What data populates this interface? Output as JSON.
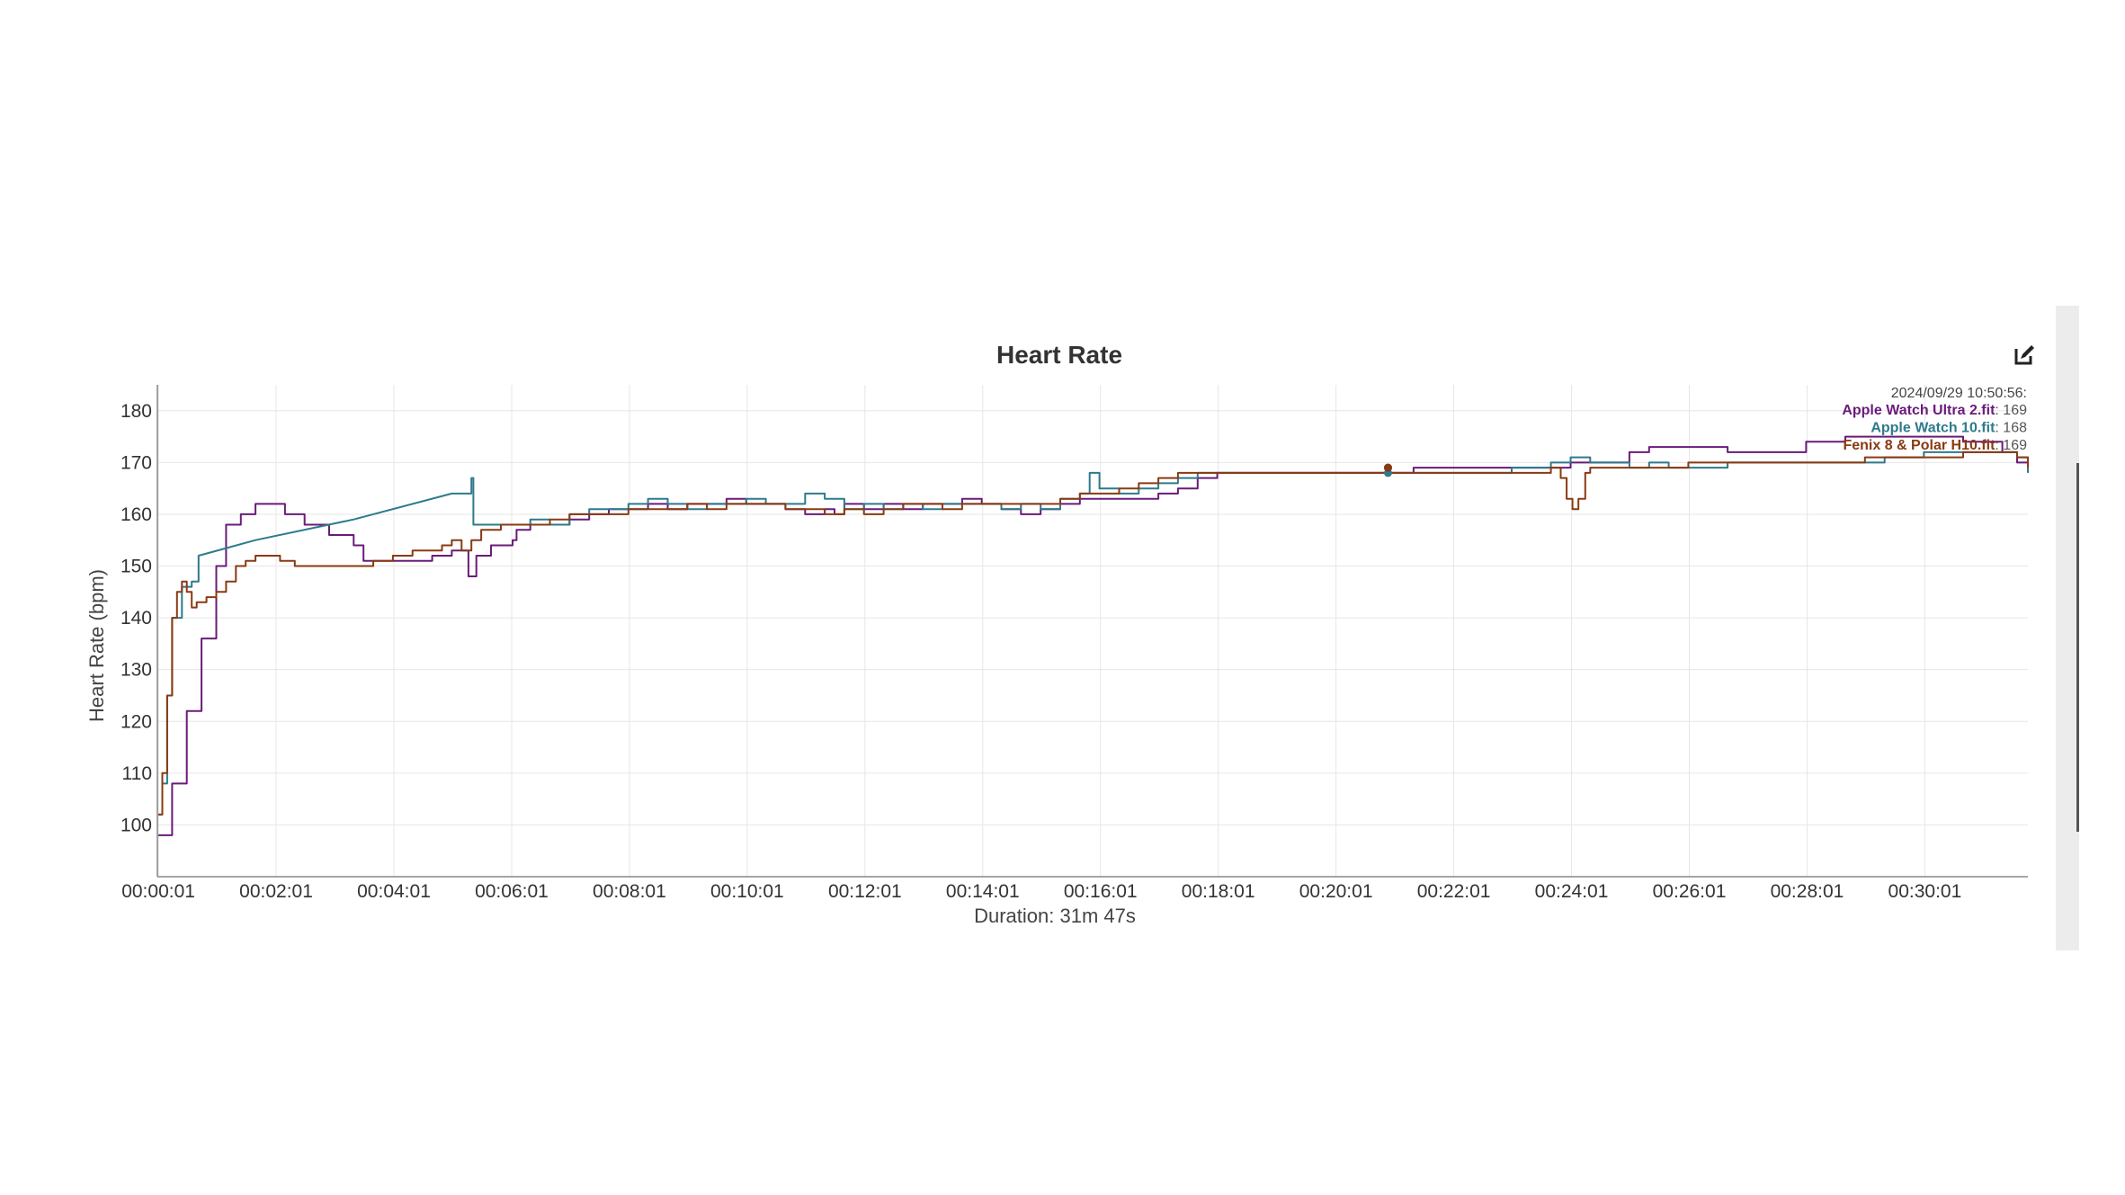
{
  "chart_data": {
    "type": "line",
    "title": "Heart Rate",
    "ylabel": "Heart Rate (bpm)",
    "xlabel": "Duration: 31m 47s",
    "x_unit": "seconds",
    "xlim": [
      0,
      1906
    ],
    "ylim": [
      90,
      185
    ],
    "x_ticks": [
      "00:00:01",
      "00:02:01",
      "00:04:01",
      "00:06:01",
      "00:08:01",
      "00:10:01",
      "00:12:01",
      "00:14:01",
      "00:16:01",
      "00:18:01",
      "00:20:01",
      "00:22:01",
      "00:24:01",
      "00:26:01",
      "00:28:01",
      "00:30:01"
    ],
    "y_ticks": [
      100,
      110,
      120,
      130,
      140,
      150,
      160,
      170,
      180
    ],
    "grid": true,
    "legend": "tooltip at top-right",
    "series": [
      {
        "name": "Apple Watch Ultra 2.fit",
        "color": "#6a1b7a",
        "points": [
          [
            1,
            98
          ],
          [
            8,
            98
          ],
          [
            15,
            108
          ],
          [
            30,
            122
          ],
          [
            45,
            136
          ],
          [
            60,
            150
          ],
          [
            70,
            158
          ],
          [
            85,
            160
          ],
          [
            100,
            162
          ],
          [
            125,
            162
          ],
          [
            130,
            160
          ],
          [
            150,
            158
          ],
          [
            175,
            156
          ],
          [
            200,
            154
          ],
          [
            210,
            151
          ],
          [
            225,
            151
          ],
          [
            240,
            151
          ],
          [
            260,
            151
          ],
          [
            280,
            152
          ],
          [
            300,
            153
          ],
          [
            310,
            153
          ],
          [
            317,
            148
          ],
          [
            325,
            152
          ],
          [
            340,
            154
          ],
          [
            362,
            155
          ],
          [
            366,
            157
          ],
          [
            380,
            158
          ],
          [
            400,
            158
          ],
          [
            420,
            159
          ],
          [
            440,
            160
          ],
          [
            460,
            161
          ],
          [
            480,
            161
          ],
          [
            500,
            162
          ],
          [
            520,
            161
          ],
          [
            540,
            162
          ],
          [
            560,
            162
          ],
          [
            580,
            163
          ],
          [
            600,
            162
          ],
          [
            620,
            162
          ],
          [
            640,
            161
          ],
          [
            660,
            160
          ],
          [
            680,
            161
          ],
          [
            690,
            160
          ],
          [
            700,
            162
          ],
          [
            720,
            161
          ],
          [
            740,
            162
          ],
          [
            760,
            161
          ],
          [
            780,
            162
          ],
          [
            800,
            162
          ],
          [
            820,
            163
          ],
          [
            840,
            162
          ],
          [
            860,
            161
          ],
          [
            880,
            160
          ],
          [
            900,
            161
          ],
          [
            920,
            162
          ],
          [
            940,
            163
          ],
          [
            960,
            163
          ],
          [
            980,
            163
          ],
          [
            1000,
            163
          ],
          [
            1020,
            164
          ],
          [
            1040,
            165
          ],
          [
            1060,
            167
          ],
          [
            1080,
            168
          ],
          [
            1100,
            168
          ],
          [
            1120,
            168
          ],
          [
            1140,
            168
          ],
          [
            1160,
            168
          ],
          [
            1180,
            168
          ],
          [
            1200,
            168
          ],
          [
            1220,
            168
          ],
          [
            1240,
            168
          ],
          [
            1260,
            168
          ],
          [
            1280,
            169
          ],
          [
            1300,
            169
          ],
          [
            1320,
            169
          ],
          [
            1340,
            169
          ],
          [
            1360,
            169
          ],
          [
            1380,
            169
          ],
          [
            1400,
            169
          ],
          [
            1420,
            169
          ],
          [
            1440,
            170
          ],
          [
            1460,
            170
          ],
          [
            1480,
            170
          ],
          [
            1500,
            172
          ],
          [
            1520,
            173
          ],
          [
            1540,
            173
          ],
          [
            1560,
            173
          ],
          [
            1580,
            173
          ],
          [
            1600,
            172
          ],
          [
            1620,
            172
          ],
          [
            1640,
            172
          ],
          [
            1660,
            172
          ],
          [
            1680,
            174
          ],
          [
            1700,
            174
          ],
          [
            1720,
            175
          ],
          [
            1740,
            175
          ],
          [
            1760,
            175
          ],
          [
            1780,
            175
          ],
          [
            1800,
            175
          ],
          [
            1820,
            175
          ],
          [
            1840,
            174
          ],
          [
            1860,
            174
          ],
          [
            1880,
            172
          ],
          [
            1895,
            170
          ],
          [
            1906,
            169
          ]
        ]
      },
      {
        "name": "Apple Watch 10.fit",
        "color": "#2e7a8c",
        "points": [
          [
            1,
            102
          ],
          [
            5,
            108
          ],
          [
            10,
            125
          ],
          [
            15,
            140
          ],
          [
            25,
            146
          ],
          [
            35,
            147
          ],
          [
            42,
            152
          ],
          [
            100,
            155
          ],
          [
            200,
            159
          ],
          [
            300,
            164
          ],
          [
            320,
            167
          ],
          [
            322,
            158
          ],
          [
            340,
            158
          ],
          [
            360,
            158
          ],
          [
            380,
            159
          ],
          [
            400,
            158
          ],
          [
            420,
            160
          ],
          [
            440,
            161
          ],
          [
            460,
            161
          ],
          [
            480,
            162
          ],
          [
            500,
            163
          ],
          [
            520,
            162
          ],
          [
            540,
            161
          ],
          [
            560,
            162
          ],
          [
            580,
            162
          ],
          [
            600,
            163
          ],
          [
            620,
            162
          ],
          [
            640,
            162
          ],
          [
            660,
            164
          ],
          [
            680,
            163
          ],
          [
            700,
            161
          ],
          [
            720,
            162
          ],
          [
            740,
            161
          ],
          [
            760,
            162
          ],
          [
            780,
            161
          ],
          [
            800,
            162
          ],
          [
            820,
            162
          ],
          [
            840,
            162
          ],
          [
            860,
            161
          ],
          [
            880,
            162
          ],
          [
            900,
            161
          ],
          [
            920,
            163
          ],
          [
            940,
            164
          ],
          [
            950,
            168
          ],
          [
            960,
            165
          ],
          [
            980,
            164
          ],
          [
            1000,
            165
          ],
          [
            1020,
            166
          ],
          [
            1040,
            167
          ],
          [
            1060,
            168
          ],
          [
            1080,
            168
          ],
          [
            1100,
            168
          ],
          [
            1120,
            168
          ],
          [
            1140,
            168
          ],
          [
            1160,
            168
          ],
          [
            1180,
            168
          ],
          [
            1200,
            168
          ],
          [
            1220,
            168
          ],
          [
            1240,
            168
          ],
          [
            1260,
            168
          ],
          [
            1280,
            168
          ],
          [
            1300,
            168
          ],
          [
            1320,
            168
          ],
          [
            1340,
            168
          ],
          [
            1360,
            168
          ],
          [
            1380,
            169
          ],
          [
            1400,
            169
          ],
          [
            1420,
            170
          ],
          [
            1440,
            171
          ],
          [
            1460,
            170
          ],
          [
            1480,
            170
          ],
          [
            1500,
            169
          ],
          [
            1520,
            170
          ],
          [
            1540,
            169
          ],
          [
            1560,
            169
          ],
          [
            1580,
            169
          ],
          [
            1600,
            170
          ],
          [
            1620,
            170
          ],
          [
            1640,
            170
          ],
          [
            1660,
            170
          ],
          [
            1680,
            170
          ],
          [
            1700,
            170
          ],
          [
            1720,
            170
          ],
          [
            1740,
            170
          ],
          [
            1760,
            171
          ],
          [
            1780,
            171
          ],
          [
            1800,
            172
          ],
          [
            1820,
            172
          ],
          [
            1840,
            172
          ],
          [
            1860,
            172
          ],
          [
            1880,
            172
          ],
          [
            1895,
            171
          ],
          [
            1906,
            168
          ]
        ]
      },
      {
        "name": "Fenix 8 & Polar H10.fit",
        "color": "#8a3a12",
        "points": [
          [
            1,
            102
          ],
          [
            5,
            110
          ],
          [
            10,
            125
          ],
          [
            15,
            140
          ],
          [
            20,
            145
          ],
          [
            25,
            147
          ],
          [
            30,
            145
          ],
          [
            35,
            142
          ],
          [
            40,
            143
          ],
          [
            50,
            144
          ],
          [
            60,
            145
          ],
          [
            70,
            147
          ],
          [
            80,
            150
          ],
          [
            90,
            151
          ],
          [
            100,
            152
          ],
          [
            110,
            152
          ],
          [
            125,
            151
          ],
          [
            140,
            150
          ],
          [
            160,
            150
          ],
          [
            180,
            150
          ],
          [
            200,
            150
          ],
          [
            220,
            151
          ],
          [
            240,
            152
          ],
          [
            260,
            153
          ],
          [
            280,
            153
          ],
          [
            290,
            154
          ],
          [
            300,
            155
          ],
          [
            310,
            153
          ],
          [
            320,
            155
          ],
          [
            330,
            157
          ],
          [
            340,
            157
          ],
          [
            350,
            158
          ],
          [
            360,
            158
          ],
          [
            370,
            158
          ],
          [
            380,
            158
          ],
          [
            400,
            159
          ],
          [
            420,
            160
          ],
          [
            440,
            160
          ],
          [
            460,
            160
          ],
          [
            480,
            161
          ],
          [
            500,
            161
          ],
          [
            520,
            161
          ],
          [
            540,
            162
          ],
          [
            560,
            161
          ],
          [
            580,
            162
          ],
          [
            600,
            162
          ],
          [
            620,
            162
          ],
          [
            640,
            161
          ],
          [
            660,
            161
          ],
          [
            680,
            160
          ],
          [
            700,
            161
          ],
          [
            720,
            160
          ],
          [
            740,
            161
          ],
          [
            760,
            162
          ],
          [
            780,
            162
          ],
          [
            800,
            161
          ],
          [
            820,
            162
          ],
          [
            840,
            162
          ],
          [
            860,
            162
          ],
          [
            880,
            162
          ],
          [
            900,
            162
          ],
          [
            920,
            163
          ],
          [
            940,
            164
          ],
          [
            960,
            164
          ],
          [
            980,
            165
          ],
          [
            1000,
            166
          ],
          [
            1020,
            167
          ],
          [
            1040,
            168
          ],
          [
            1060,
            168
          ],
          [
            1080,
            168
          ],
          [
            1100,
            168
          ],
          [
            1120,
            168
          ],
          [
            1140,
            168
          ],
          [
            1160,
            168
          ],
          [
            1180,
            168
          ],
          [
            1200,
            168
          ],
          [
            1220,
            168
          ],
          [
            1240,
            168
          ],
          [
            1260,
            168
          ],
          [
            1280,
            168
          ],
          [
            1300,
            168
          ],
          [
            1320,
            168
          ],
          [
            1340,
            168
          ],
          [
            1360,
            168
          ],
          [
            1380,
            168
          ],
          [
            1400,
            168
          ],
          [
            1420,
            169
          ],
          [
            1430,
            167
          ],
          [
            1436,
            163
          ],
          [
            1442,
            161
          ],
          [
            1448,
            163
          ],
          [
            1455,
            168
          ],
          [
            1460,
            169
          ],
          [
            1480,
            169
          ],
          [
            1500,
            169
          ],
          [
            1520,
            169
          ],
          [
            1540,
            169
          ],
          [
            1560,
            170
          ],
          [
            1580,
            170
          ],
          [
            1600,
            170
          ],
          [
            1620,
            170
          ],
          [
            1640,
            170
          ],
          [
            1660,
            170
          ],
          [
            1680,
            170
          ],
          [
            1700,
            170
          ],
          [
            1720,
            170
          ],
          [
            1740,
            171
          ],
          [
            1760,
            171
          ],
          [
            1780,
            171
          ],
          [
            1800,
            171
          ],
          [
            1820,
            171
          ],
          [
            1840,
            172
          ],
          [
            1860,
            172
          ],
          [
            1880,
            172
          ],
          [
            1895,
            171
          ],
          [
            1906,
            169
          ]
        ]
      }
    ],
    "tooltip": {
      "time": "2024/09/29 10:50:56:",
      "entries": [
        {
          "name": "Apple Watch Ultra 2.fit",
          "value": "169",
          "color": "#6a1b7a"
        },
        {
          "name": "Apple Watch 10.fit",
          "value": "168",
          "color": "#2e7a8c"
        },
        {
          "name": "Fenix 8 & Polar H10.fit",
          "value": "169",
          "color": "#8a3a12"
        }
      ],
      "x": 1254
    }
  },
  "colors": {
    "grid": "#e6e6e6",
    "axis": "#888888"
  },
  "icons": {
    "edit": "edit-icon"
  }
}
